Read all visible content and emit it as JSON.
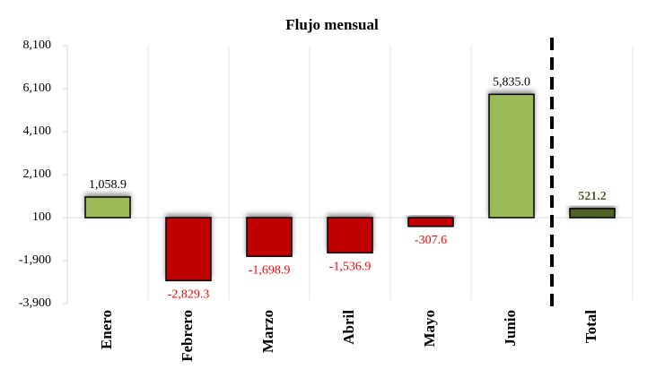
{
  "chart_data": {
    "type": "bar",
    "title": "Flujo mensual",
    "categories": [
      "Enero",
      "Febrero",
      "Marzo",
      "Abril",
      "Mayo",
      "Junio",
      "Total"
    ],
    "values": [
      1058.9,
      -2829.3,
      -1698.9,
      -1536.9,
      -307.6,
      5835.0,
      521.2
    ],
    "value_labels": [
      "1,058.9",
      "-2,829.3",
      "-1,698.9",
      "-1,536.9",
      "-307.6",
      "5,835.0",
      "521.2"
    ],
    "colors": [
      "#9bbb59",
      "#c00000",
      "#c00000",
      "#c00000",
      "#c00000",
      "#9bbb59",
      "#4f6228"
    ],
    "label_colors": [
      "#000000",
      "#ff0000",
      "#ff0000",
      "#ff0000",
      "#ff0000",
      "#000000",
      "#4f6228"
    ],
    "axis_crossing": 100,
    "ylim": [
      -3900,
      8100
    ],
    "yticks": [
      {
        "value": -3900,
        "label": "-3,900"
      },
      {
        "value": -1900,
        "label": "-1,900"
      },
      100,
      {
        "value": 2100,
        "label": "2,100"
      },
      {
        "value": 4100,
        "label": "4,100"
      },
      {
        "value": 6100,
        "label": "6,100"
      },
      {
        "value": 8100,
        "label": "8,100"
      }
    ],
    "grid": false
  }
}
